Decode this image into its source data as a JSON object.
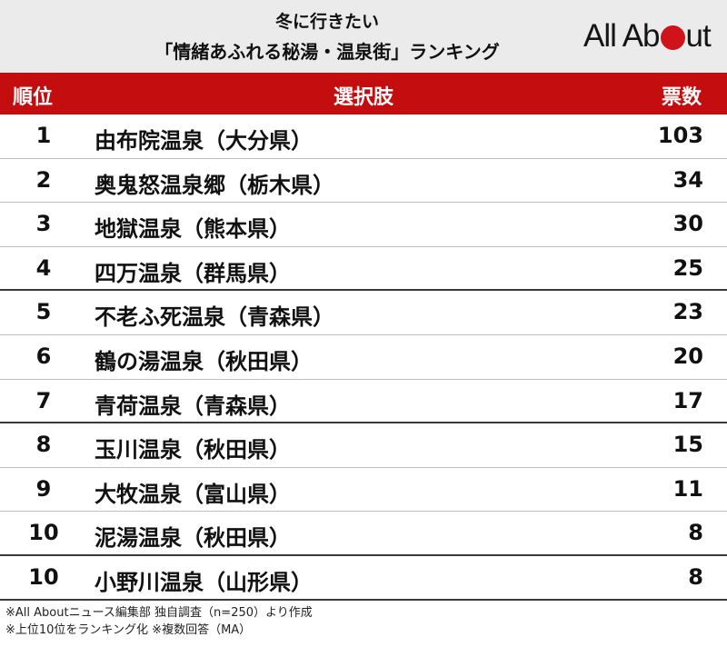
{
  "header": {
    "title_line1": "冬に行きたい",
    "title_line2": "「情緒あふれる秘湯・温泉街」ランキング",
    "logo_left": "All Ab",
    "logo_right": "ut"
  },
  "chart_data": {
    "type": "table",
    "columns": [
      "順位",
      "選択肢",
      "票数"
    ],
    "rows": [
      {
        "rank": "1",
        "name": "由布院温泉（大分県）",
        "votes": "103"
      },
      {
        "rank": "2",
        "name": "奥鬼怒温泉郷（栃木県）",
        "votes": "34"
      },
      {
        "rank": "3",
        "name": "地獄温泉（熊本県）",
        "votes": "30"
      },
      {
        "rank": "4",
        "name": "四万温泉（群馬県）",
        "votes": "25"
      },
      {
        "rank": "5",
        "name": "不老ふ死温泉（青森県）",
        "votes": "23"
      },
      {
        "rank": "6",
        "name": "鶴の湯温泉（秋田県）",
        "votes": "20"
      },
      {
        "rank": "7",
        "name": "青荷温泉（青森県）",
        "votes": "17"
      },
      {
        "rank": "8",
        "name": "玉川温泉（秋田県）",
        "votes": "15"
      },
      {
        "rank": "9",
        "name": "大牧温泉（富山県）",
        "votes": "11"
      },
      {
        "rank": "10",
        "name": "泥湯温泉（秋田県）",
        "votes": "8"
      },
      {
        "rank": "10",
        "name": "小野川温泉（山形県）",
        "votes": "8"
      }
    ]
  },
  "footer": {
    "note1": "※All Aboutニュース編集部 独自調査（n=250）より作成",
    "note2": "※上位10位をランキング化 ※複数回答（MA）"
  },
  "colors": {
    "header_bg": "#ebebeb",
    "table_header_bg": "#c40d0f",
    "logo_dot": "#d0121b"
  }
}
